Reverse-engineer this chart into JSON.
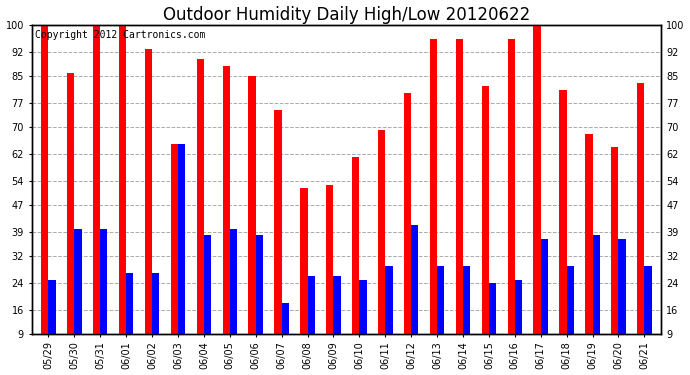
{
  "title": "Outdoor Humidity Daily High/Low 20120622",
  "copyright": "Copyright 2012 Cartronics.com",
  "categories": [
    "05/29",
    "05/30",
    "05/31",
    "06/01",
    "06/02",
    "06/03",
    "06/04",
    "06/05",
    "06/06",
    "06/07",
    "06/08",
    "06/09",
    "06/10",
    "06/11",
    "06/12",
    "06/13",
    "06/14",
    "06/15",
    "06/16",
    "06/17",
    "06/18",
    "06/19",
    "06/20",
    "06/21"
  ],
  "highs": [
    100,
    86,
    100,
    100,
    93,
    65,
    90,
    88,
    85,
    75,
    52,
    53,
    61,
    69,
    80,
    96,
    96,
    82,
    96,
    100,
    81,
    68,
    64,
    83
  ],
  "lows": [
    25,
    40,
    40,
    27,
    27,
    65,
    38,
    40,
    38,
    18,
    26,
    26,
    25,
    29,
    41,
    29,
    29,
    24,
    25,
    37,
    29,
    38,
    37,
    29
  ],
  "high_color": "#ff0000",
  "low_color": "#0000ff",
  "background_color": "#ffffff",
  "grid_color": "#aaaaaa",
  "yticks": [
    9,
    16,
    24,
    32,
    39,
    47,
    54,
    62,
    70,
    77,
    85,
    92,
    100
  ],
  "ymin": 9,
  "ymax": 100,
  "bar_width": 0.28,
  "title_fontsize": 12,
  "tick_fontsize": 7,
  "copyright_fontsize": 7
}
